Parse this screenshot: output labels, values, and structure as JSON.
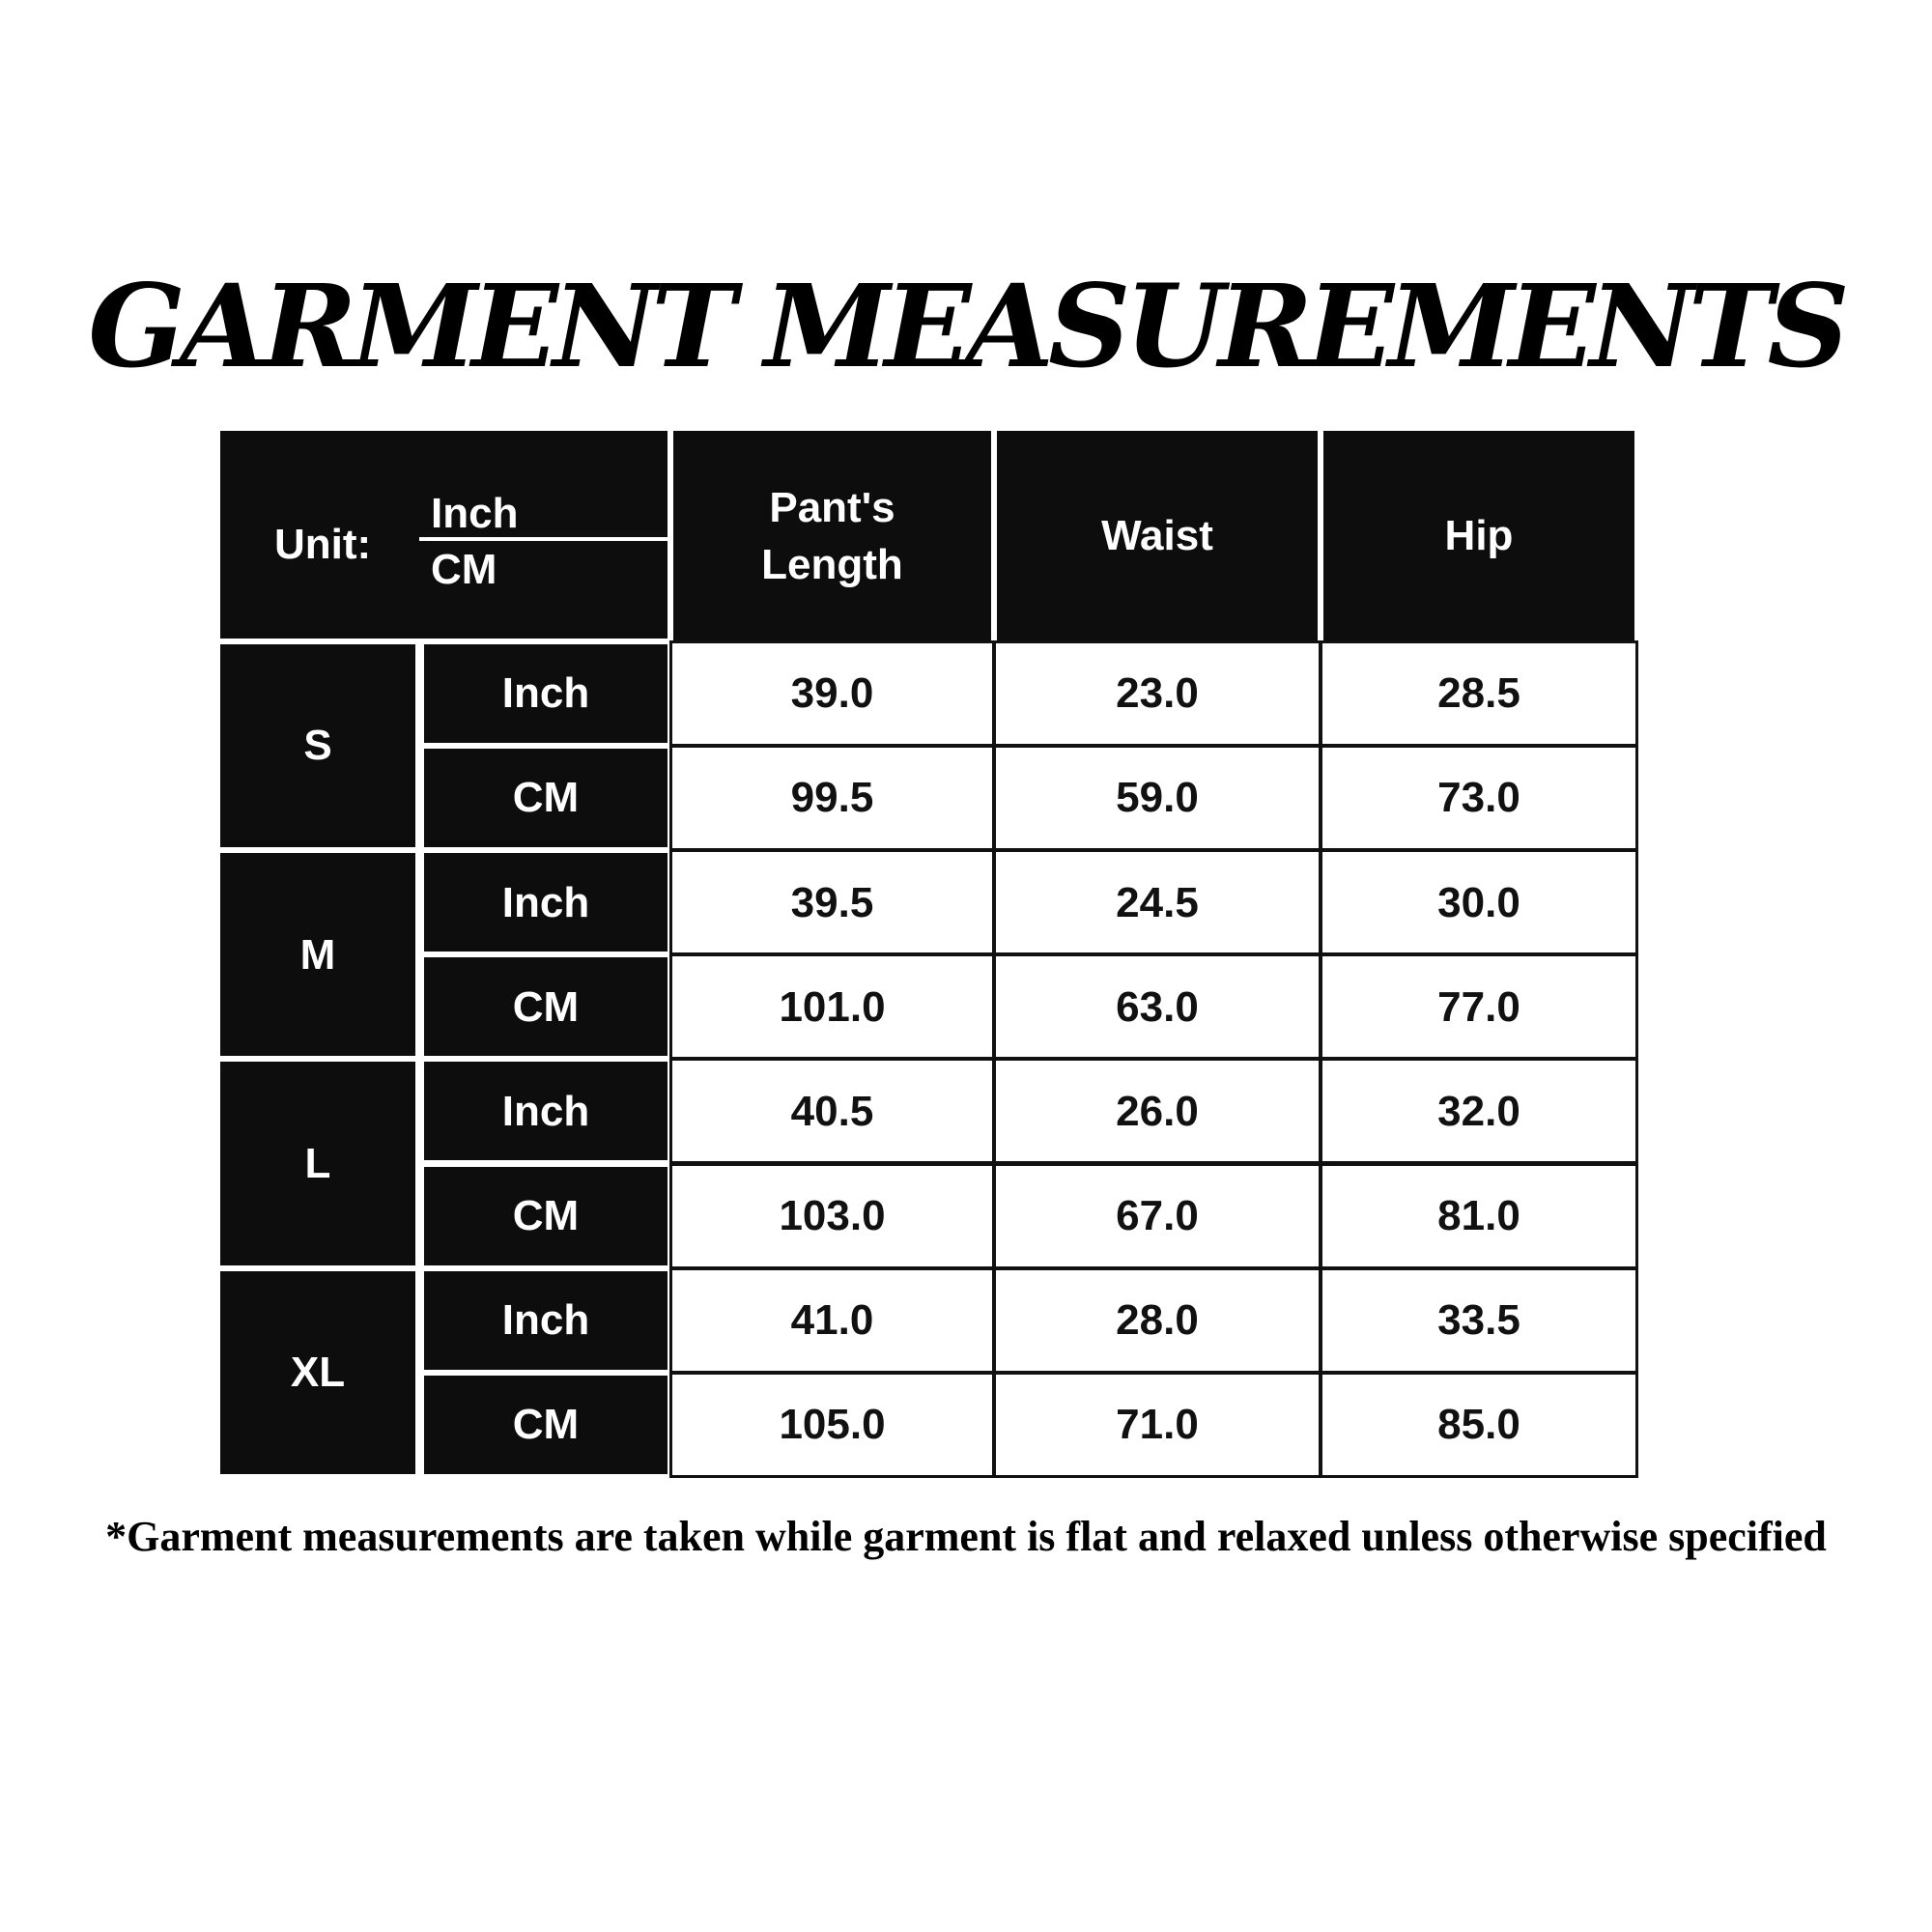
{
  "title": "GARMENT MEASUREMENTS",
  "table": {
    "unit_label": "Unit:",
    "unit_top": "Inch",
    "unit_bottom": "CM",
    "columns": [
      "Pant's Length",
      "Waist",
      "Hip"
    ],
    "sizes": [
      {
        "size": "S",
        "rows": [
          {
            "unit": "Inch",
            "values": [
              "39.0",
              "23.0",
              "28.5"
            ]
          },
          {
            "unit": "CM",
            "values": [
              "99.5",
              "59.0",
              "73.0"
            ]
          }
        ]
      },
      {
        "size": "M",
        "rows": [
          {
            "unit": "Inch",
            "values": [
              "39.5",
              "24.5",
              "30.0"
            ]
          },
          {
            "unit": "CM",
            "values": [
              "101.0",
              "63.0",
              "77.0"
            ]
          }
        ]
      },
      {
        "size": "L",
        "rows": [
          {
            "unit": "Inch",
            "values": [
              "40.5",
              "26.0",
              "32.0"
            ]
          },
          {
            "unit": "CM",
            "values": [
              "103.0",
              "67.0",
              "81.0"
            ]
          }
        ]
      },
      {
        "size": "XL",
        "rows": [
          {
            "unit": "Inch",
            "values": [
              "41.0",
              "28.0",
              "33.5"
            ]
          },
          {
            "unit": "CM",
            "values": [
              "105.0",
              "71.0",
              "85.0"
            ]
          }
        ]
      }
    ]
  },
  "footnote": "*Garment measurements are taken while garment is flat and relaxed unless otherwise specified",
  "colors": {
    "header_bg": "#0d0d0d",
    "header_text": "#ffffff",
    "cell_bg": "#ffffff",
    "cell_text": "#111111"
  }
}
